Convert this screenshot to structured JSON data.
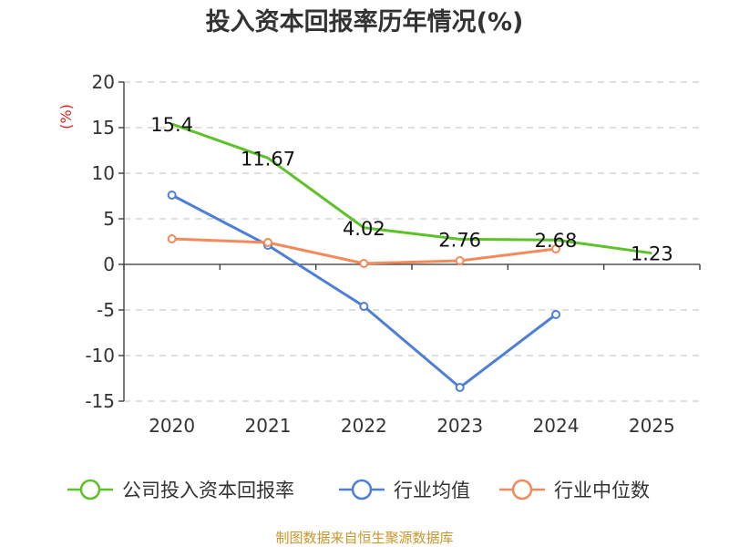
{
  "chart_data": {
    "type": "line",
    "title": "投入资本回报率历年情况(%)",
    "ylabel": "(%)",
    "xlabel": "",
    "categories": [
      "2020",
      "2021",
      "2022",
      "2023",
      "2024",
      "2025"
    ],
    "ylim": [
      -15,
      20
    ],
    "yticks": [
      "20",
      "15",
      "10",
      "5",
      "0",
      "-5",
      "-10",
      "-15"
    ],
    "grid": true,
    "legend_position": "bottom",
    "series": [
      {
        "name": "公司投入资本回报率",
        "color": "#5cc227",
        "markers": false,
        "values": [
          15.4,
          11.67,
          4.02,
          2.76,
          2.68,
          1.23
        ],
        "labels": [
          "15.4",
          "11.67",
          "4.02",
          "2.76",
          "2.68",
          "1.23"
        ]
      },
      {
        "name": "行业均值",
        "color": "#4d7fd8",
        "markers": true,
        "values": [
          7.6,
          2.1,
          -4.6,
          -13.5,
          -5.5,
          null
        ]
      },
      {
        "name": "行业中位数",
        "color": "#f48a5a",
        "markers": true,
        "values": [
          2.8,
          2.4,
          0.1,
          0.4,
          1.7,
          null
        ]
      }
    ]
  },
  "footer": {
    "source": "制图数据来自恒生聚源数据库"
  }
}
